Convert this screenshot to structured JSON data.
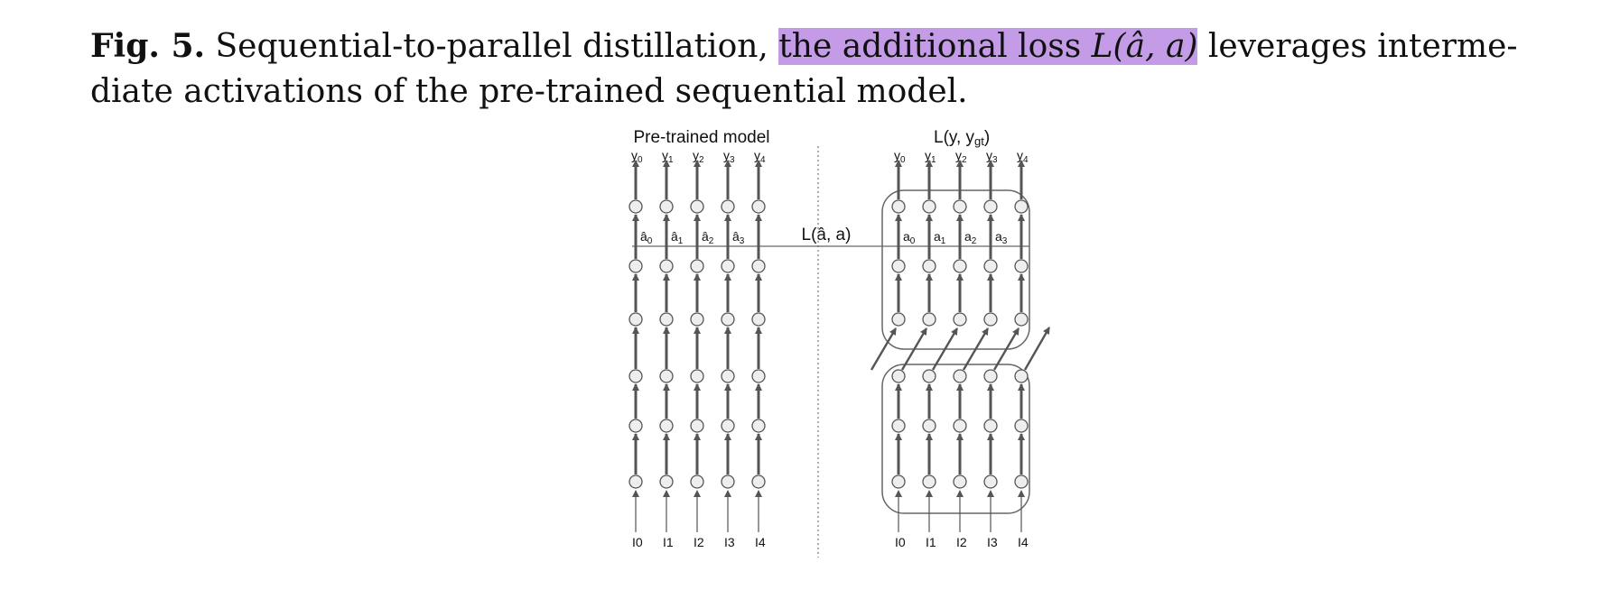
{
  "caption": {
    "label": "Fig. 5.",
    "text_before": " Sequential-to-parallel distillation, ",
    "highlight_text": "the additional loss ",
    "highlight_math": "L(â, a)",
    "text_after": " leverages interme-diate activations of the pre-trained sequential model."
  },
  "figure": {
    "left_title": "Pre-trained model",
    "right_title": "L(y, y",
    "right_title_sub": "gt",
    "right_title_close": ")",
    "loss_label": "L(â, a)",
    "outputs": [
      "y",
      "y",
      "y",
      "y",
      "y"
    ],
    "output_subs": [
      "0",
      "1",
      "2",
      "3",
      "4"
    ],
    "inputs": [
      "I0",
      "I1",
      "I2",
      "I3",
      "I4"
    ],
    "left_activations": [
      "â",
      "â",
      "â",
      "â"
    ],
    "right_activations": [
      "a",
      "a",
      "a",
      "a"
    ],
    "activation_subs": [
      "0",
      "1",
      "2",
      "3"
    ]
  },
  "colors": {
    "highlight": "#c49be6",
    "line": "#555555",
    "node_fill": "#eeeeee"
  }
}
